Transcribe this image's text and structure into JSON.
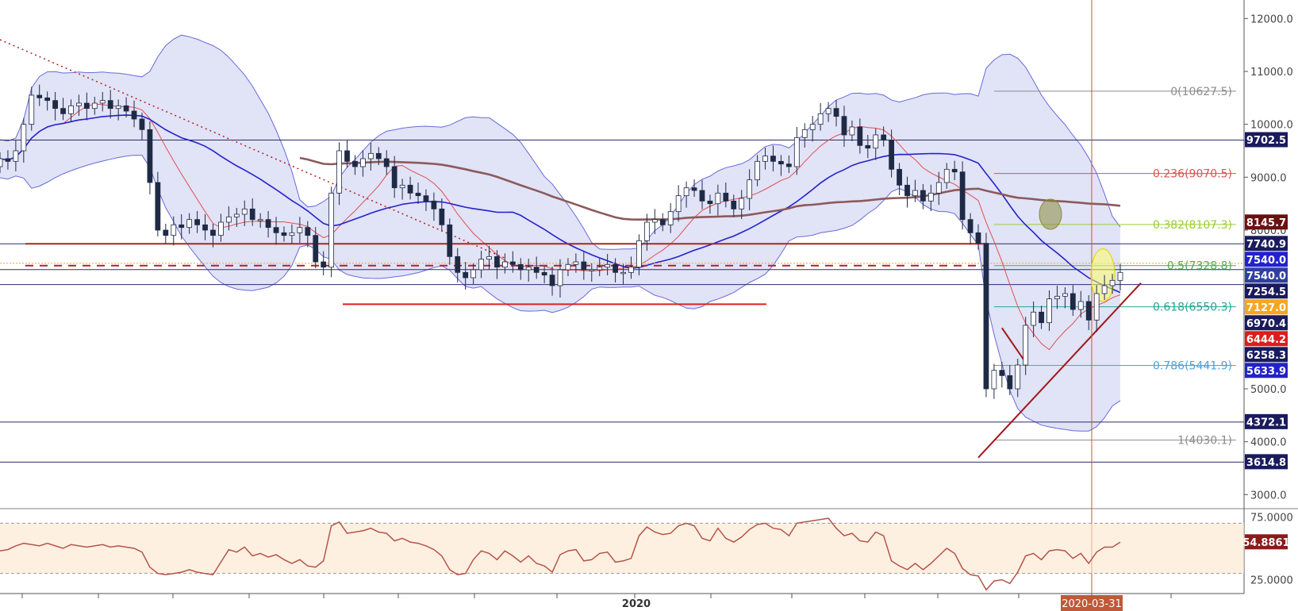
{
  "chart_data": [
    {
      "type": "candlestick",
      "title": "",
      "x_ticks": [
        "2020"
      ],
      "cursor_date": "2020-03-31",
      "y_axis_ticks": [
        "12000.0",
        "11000.0",
        "10000.0",
        "9000.0",
        "8000.0",
        "5000.0",
        "4000.0",
        "3000.0"
      ],
      "y_range": [
        2750,
        12350
      ],
      "price_labels": [
        {
          "text": "9702.5",
          "value": 9702.5,
          "color": "#1a1a5e"
        },
        {
          "text": "8145.7",
          "value": 8145.7,
          "color": "#6b1010"
        },
        {
          "text": "7740.9",
          "value": 7740.9,
          "color": "#1a1a5e"
        },
        {
          "text": "7540.0",
          "value": 7540.0,
          "color": "#2222cc"
        },
        {
          "text": "7540.0",
          "value": 7540.0,
          "color": "#2f3fa0"
        },
        {
          "text": "7254.5",
          "value": 7254.5,
          "color": "#1a1a5e"
        },
        {
          "text": "7127.0",
          "value": 7127.0,
          "color": "#f5a623"
        },
        {
          "text": "6970.4",
          "value": 6970.4,
          "color": "#1a1a5e"
        },
        {
          "text": "6444.2",
          "value": 6444.2,
          "color": "#e01b1b"
        },
        {
          "text": "6258.3",
          "value": 6258.3,
          "color": "#1a1a5e"
        },
        {
          "text": "5633.9",
          "value": 5633.9,
          "color": "#2222cc"
        },
        {
          "text": "4372.1",
          "value": 4372.1,
          "color": "#1a1a5e"
        },
        {
          "text": "3614.8",
          "value": 3614.8,
          "color": "#1a1a5e"
        }
      ],
      "fibonacci": [
        {
          "label": "0(10627.5)",
          "value": 10627.5,
          "color": "#8c8c8c"
        },
        {
          "label": "0.236(9070.5)",
          "value": 9070.5,
          "color": "#e05050"
        },
        {
          "label": "0.382(8107.3)",
          "value": 8107.3,
          "color": "#9acd32"
        },
        {
          "label": "0.5(7328.8)",
          "value": 7328.8,
          "color": "#4caf50"
        },
        {
          "label": "0.618(6550.3)",
          "value": 6550.3,
          "color": "#26a69a"
        },
        {
          "label": "0.786(5441.9)",
          "value": 5441.9,
          "color": "#4aa3df"
        },
        {
          "label": "1(4030.1)",
          "value": 4030.1,
          "color": "#8c8c8c"
        }
      ],
      "horizontal_lines": [
        9702.5,
        7740.9,
        7254.5,
        6970.4,
        4372.1,
        3614.8
      ],
      "colors": {
        "up": "#ffffff",
        "down": "#1f2a44",
        "ma_fast": "#e05050",
        "ma_mid": "#2222cc",
        "ma_slow": "#8b5a5a",
        "band_fill": "#c8ccf0",
        "band_line": "#6a6ad8"
      },
      "candles_close": [
        9350,
        9300,
        9500,
        10000,
        10550,
        10500,
        10450,
        10300,
        10200,
        10350,
        10400,
        10300,
        10400,
        10450,
        10300,
        10350,
        10250,
        10100,
        9900,
        8900,
        8000,
        7900,
        8100,
        8050,
        8200,
        8100,
        8000,
        7900,
        8150,
        8250,
        8300,
        8400,
        8200,
        8200,
        8050,
        7950,
        7900,
        7950,
        8050,
        7900,
        7400,
        7300,
        8700,
        9500,
        9300,
        9200,
        9350,
        9450,
        9350,
        9200,
        8800,
        8850,
        8700,
        8650,
        8550,
        8400,
        8100,
        7500,
        7200,
        7100,
        7250,
        7450,
        7500,
        7300,
        7400,
        7350,
        7250,
        7300,
        7200,
        7150,
        6950,
        7250,
        7350,
        7400,
        7250,
        7250,
        7300,
        7350,
        7200,
        7200,
        7300,
        7800,
        8150,
        8200,
        8100,
        8350,
        8650,
        8800,
        8750,
        8550,
        8500,
        8700,
        8550,
        8400,
        8600,
        8950,
        9300,
        9400,
        9300,
        9250,
        9200,
        9750,
        9900,
        10000,
        10200,
        10300,
        10150,
        9800,
        9950,
        9600,
        9550,
        9800,
        9700,
        9150,
        8850,
        8650,
        8750,
        8550,
        8700,
        8900,
        9150,
        9100,
        8200,
        7950,
        7750,
        5000,
        5350,
        5250,
        5000,
        5450,
        6200,
        6450,
        6250,
        6700,
        6750,
        6800,
        6500,
        6650,
        6300,
        6800,
        6950,
        7050,
        7200
      ]
    },
    {
      "type": "line",
      "title": "",
      "y_axis_ticks": [
        "75.0000",
        "25.0000"
      ],
      "y_range": [
        14,
        81
      ],
      "overbought": 70,
      "oversold": 30,
      "last_label": "54.8861",
      "values": [
        48,
        49,
        52,
        54,
        53,
        52,
        54,
        52,
        50,
        53,
        52,
        51,
        52,
        53,
        51,
        52,
        51,
        50,
        47,
        35,
        30,
        29,
        30,
        31,
        33,
        31,
        30,
        29,
        39,
        49,
        47,
        51,
        44,
        46,
        43,
        45,
        41,
        38,
        41,
        36,
        35,
        40,
        68,
        71,
        62,
        63,
        64,
        66,
        63,
        62,
        56,
        58,
        55,
        54,
        52,
        49,
        44,
        33,
        29,
        30,
        41,
        48,
        46,
        41,
        48,
        44,
        39,
        44,
        38,
        36,
        31,
        45,
        48,
        49,
        40,
        41,
        46,
        47,
        39,
        40,
        42,
        60,
        67,
        63,
        61,
        62,
        68,
        70,
        68,
        58,
        56,
        66,
        58,
        55,
        59,
        65,
        69,
        70,
        66,
        65,
        60,
        70,
        71,
        72,
        73,
        74,
        66,
        60,
        62,
        56,
        55,
        63,
        60,
        40,
        36,
        33,
        38,
        33,
        38,
        44,
        50,
        46,
        34,
        29,
        28,
        17,
        24,
        25,
        22,
        31,
        44,
        46,
        41,
        48,
        49,
        48,
        42,
        46,
        38,
        47,
        51,
        51,
        54.9
      ]
    }
  ]
}
